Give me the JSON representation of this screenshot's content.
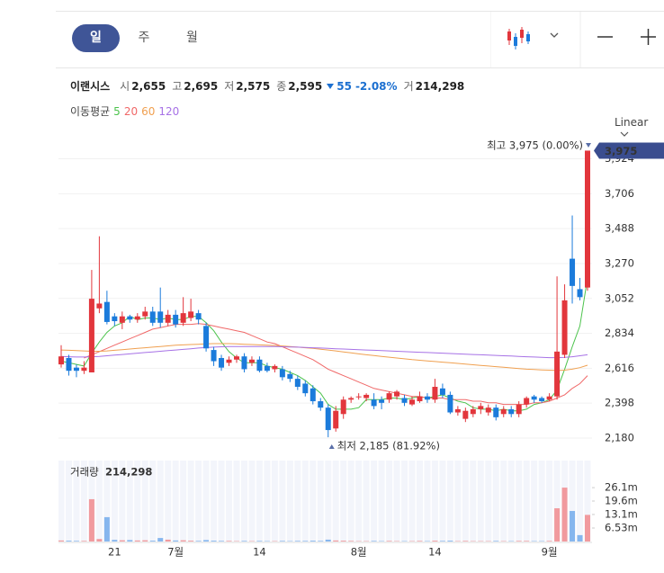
{
  "toolbar": {
    "tabs": [
      "일",
      "주",
      "월"
    ],
    "selected": 0
  },
  "quote": {
    "name": "이랜시스",
    "fields": [
      {
        "label": "시",
        "value": "2,655"
      },
      {
        "label": "고",
        "value": "2,695"
      },
      {
        "label": "저",
        "value": "2,575"
      },
      {
        "label": "종",
        "value": "2,595"
      }
    ],
    "change": "55",
    "change_pct": "-2.08%",
    "volume_label": "거",
    "volume": "214,298"
  },
  "ma_legend": {
    "title": "이동평균"
  },
  "scale_menu": "Linear",
  "chart_data": [
    {
      "type": "candlestick",
      "categories": [
        null,
        null,
        null,
        null,
        null,
        null,
        null,
        "21",
        null,
        null,
        null,
        null,
        null,
        null,
        null,
        "7월",
        null,
        null,
        null,
        null,
        null,
        null,
        null,
        null,
        null,
        null,
        "14",
        null,
        null,
        null,
        null,
        null,
        null,
        null,
        null,
        null,
        null,
        null,
        null,
        "8월",
        null,
        null,
        null,
        null,
        null,
        null,
        null,
        null,
        null,
        "14",
        null,
        null,
        null,
        null,
        null,
        null,
        null,
        null,
        null,
        null,
        null,
        null,
        null,
        null,
        "9월",
        null,
        null,
        null,
        null,
        null
      ],
      "open": [
        2640,
        2680,
        2620,
        2600,
        2590,
        2990,
        3030,
        2940,
        2900,
        2940,
        2920,
        2940,
        2970,
        2970,
        2900,
        2950,
        2900,
        2930,
        2960,
        2880,
        2730,
        2680,
        2650,
        2670,
        2690,
        2650,
        2670,
        2630,
        2610,
        2610,
        2580,
        2550,
        2520,
        2490,
        2410,
        2370,
        2240,
        2330,
        2420,
        2440,
        2430,
        2420,
        2420,
        2420,
        2440,
        2430,
        2390,
        2410,
        2440,
        2420,
        2490,
        2450,
        2340,
        2300,
        2330,
        2360,
        2340,
        2370,
        2330,
        2360,
        2330,
        2390,
        2440,
        2430,
        2420,
        2440,
        2700,
        3300,
        3110,
        3120
      ],
      "high": [
        2760,
        2700,
        2640,
        2660,
        3230,
        3440,
        3100,
        2960,
        2970,
        2950,
        2960,
        3000,
        3000,
        3120,
        2980,
        2980,
        3060,
        3050,
        2980,
        2900,
        2750,
        2700,
        2690,
        2700,
        2710,
        2690,
        2690,
        2650,
        2640,
        2630,
        2600,
        2570,
        2540,
        2510,
        2430,
        2390,
        2380,
        2440,
        2440,
        2460,
        2460,
        2460,
        2440,
        2470,
        2480,
        2450,
        2440,
        2470,
        2460,
        2550,
        2520,
        2470,
        2380,
        2370,
        2380,
        2400,
        2390,
        2390,
        2380,
        2380,
        2410,
        2440,
        2450,
        2440,
        2460,
        3190,
        3140,
        3570,
        3180,
        3975
      ],
      "low": [
        2620,
        2570,
        2560,
        2580,
        2590,
        2960,
        2890,
        2880,
        2860,
        2900,
        2900,
        2920,
        2880,
        2870,
        2880,
        2870,
        2880,
        2910,
        2890,
        2720,
        2630,
        2600,
        2630,
        2650,
        2590,
        2630,
        2590,
        2590,
        2590,
        2540,
        2530,
        2480,
        2440,
        2390,
        2350,
        2185,
        2220,
        2300,
        2400,
        2420,
        2410,
        2360,
        2360,
        2400,
        2420,
        2380,
        2380,
        2400,
        2400,
        2400,
        2430,
        2330,
        2320,
        2280,
        2310,
        2330,
        2320,
        2290,
        2310,
        2310,
        2310,
        2370,
        2400,
        2400,
        2410,
        2420,
        2680,
        3020,
        3040,
        3100
      ],
      "close": [
        2690,
        2600,
        2600,
        2620,
        3050,
        3020,
        2905,
        2910,
        2940,
        2920,
        2940,
        2970,
        2900,
        2900,
        2950,
        2890,
        2960,
        2970,
        2920,
        2740,
        2660,
        2620,
        2670,
        2690,
        2610,
        2670,
        2600,
        2600,
        2630,
        2560,
        2550,
        2500,
        2460,
        2410,
        2370,
        2230,
        2350,
        2420,
        2430,
        2440,
        2450,
        2380,
        2400,
        2460,
        2470,
        2400,
        2420,
        2440,
        2420,
        2500,
        2450,
        2340,
        2360,
        2350,
        2360,
        2380,
        2370,
        2310,
        2360,
        2330,
        2390,
        2430,
        2420,
        2410,
        2440,
        2720,
        3040,
        3130,
        3060,
        3975
      ],
      "up_color": "#e2363c",
      "down_color": "#1b7bdb",
      "ma": [
        {
          "period": 5,
          "color": "#4cc34c",
          "values": [
            2660,
            2650,
            2640,
            2630,
            2710,
            2780,
            2840,
            2880,
            2900,
            2940,
            2920,
            2930,
            2930,
            2920,
            2930,
            2920,
            2920,
            2940,
            2940,
            2900,
            2850,
            2780,
            2720,
            2680,
            2650,
            2650,
            2650,
            2630,
            2620,
            2610,
            2590,
            2570,
            2540,
            2500,
            2460,
            2390,
            2360,
            2360,
            2360,
            2370,
            2420,
            2420,
            2420,
            2430,
            2430,
            2420,
            2430,
            2440,
            2430,
            2440,
            2450,
            2430,
            2410,
            2400,
            2370,
            2360,
            2360,
            2350,
            2360,
            2350,
            2350,
            2360,
            2390,
            2400,
            2420,
            2480,
            2610,
            2750,
            2880,
            3180
          ]
        },
        {
          "period": 20,
          "color": "#f06868",
          "values": [
            null,
            null,
            null,
            2680,
            2700,
            2720,
            2740,
            2760,
            2780,
            2800,
            2820,
            2840,
            2860,
            2870,
            2880,
            2890,
            2890,
            2890,
            2895,
            2890,
            2880,
            2870,
            2860,
            2850,
            2840,
            2820,
            2800,
            2780,
            2770,
            2750,
            2730,
            2710,
            2690,
            2670,
            2640,
            2610,
            2590,
            2570,
            2550,
            2530,
            2510,
            2490,
            2480,
            2470,
            2460,
            2450,
            2440,
            2440,
            2430,
            2430,
            2430,
            2420,
            2420,
            2420,
            2410,
            2410,
            2400,
            2400,
            2390,
            2390,
            2390,
            2390,
            2400,
            2400,
            2410,
            2430,
            2450,
            2490,
            2520,
            2570
          ]
        },
        {
          "period": 60,
          "color": "#f0a050",
          "values": [
            2730,
            2728,
            2726,
            2724,
            2722,
            2722,
            2724,
            2728,
            2732,
            2736,
            2740,
            2744,
            2748,
            2752,
            2756,
            2760,
            2762,
            2764,
            2766,
            2768,
            2770,
            2770,
            2770,
            2768,
            2766,
            2764,
            2762,
            2760,
            2758,
            2755,
            2752,
            2748,
            2744,
            2740,
            2735,
            2730,
            2724,
            2718,
            2712,
            2706,
            2700,
            2695,
            2690,
            2685,
            2680,
            2675,
            2670,
            2666,
            2662,
            2658,
            2654,
            2650,
            2646,
            2642,
            2638,
            2634,
            2630,
            2626,
            2622,
            2618,
            2614,
            2610,
            2608,
            2606,
            2604,
            2602,
            2604,
            2610,
            2620,
            2635
          ]
        },
        {
          "period": 120,
          "color": "#a772e6",
          "values": [
            2690,
            2688,
            2686,
            2686,
            2688,
            2690,
            2694,
            2698,
            2702,
            2706,
            2710,
            2714,
            2718,
            2722,
            2726,
            2730,
            2734,
            2738,
            2742,
            2745,
            2748,
            2750,
            2751,
            2752,
            2752,
            2752,
            2752,
            2752,
            2751,
            2750,
            2749,
            2748,
            2746,
            2744,
            2742,
            2740,
            2738,
            2736,
            2734,
            2732,
            2730,
            2728,
            2726,
            2724,
            2722,
            2720,
            2718,
            2716,
            2714,
            2712,
            2710,
            2708,
            2706,
            2704,
            2702,
            2700,
            2698,
            2696,
            2694,
            2692,
            2690,
            2688,
            2686,
            2684,
            2682,
            2682,
            2684,
            2688,
            2694,
            2700
          ]
        }
      ],
      "ylim": [
        2135,
        4073
      ],
      "yticks": [
        {
          "value": 2180,
          "label": "2,180"
        },
        {
          "value": 2398,
          "label": "2,398"
        },
        {
          "value": 2616,
          "label": "2,616"
        },
        {
          "value": 2834,
          "label": "2,834"
        },
        {
          "value": 3052,
          "label": "3,052"
        },
        {
          "value": 3270,
          "label": "3,270"
        },
        {
          "value": 3488,
          "label": "3,488"
        },
        {
          "value": 3706,
          "label": "3,706"
        },
        {
          "value": 3924,
          "label": "3,924"
        }
      ],
      "grid": true,
      "high_label": "최고 3,975 (0.00%)",
      "low_label": "최저 2,185 (81.92%)",
      "last_label": "3,975"
    },
    {
      "type": "bar",
      "title": "거래량",
      "title_value": "214,298",
      "values": [
        500000,
        400000,
        300000,
        300000,
        20500000,
        1200000,
        11800000,
        800000,
        600000,
        700000,
        500000,
        600000,
        400000,
        1700000,
        900000,
        500000,
        600000,
        400000,
        300000,
        700000,
        400000,
        300000,
        300000,
        200000,
        300000,
        200000,
        300000,
        200000,
        200000,
        300000,
        200000,
        300000,
        300000,
        400000,
        300000,
        900000,
        500000,
        400000,
        300000,
        200000,
        200000,
        300000,
        200000,
        300000,
        200000,
        200000,
        200000,
        300000,
        200000,
        400000,
        300000,
        400000,
        200000,
        300000,
        200000,
        200000,
        200000,
        300000,
        200000,
        200000,
        300000,
        300000,
        200000,
        200000,
        300000,
        16100000,
        26100000,
        14800000,
        3100000,
        12900000
      ],
      "up_color": "#f19a9e",
      "down_color": "#86b6ee",
      "ylim": [
        0,
        37900000
      ],
      "yticks": [
        {
          "value": 6530000,
          "label": "6.53m"
        },
        {
          "value": 13100000,
          "label": "13.1m"
        },
        {
          "value": 19600000,
          "label": "19.6m"
        },
        {
          "value": 26100000,
          "label": "26.1m"
        }
      ]
    }
  ]
}
